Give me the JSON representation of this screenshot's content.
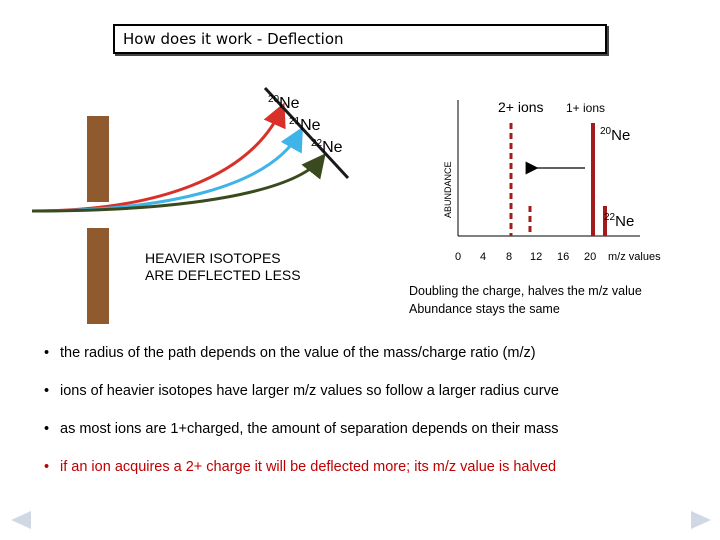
{
  "slide": {
    "title": "How does it work - Deflection"
  },
  "deflection_diagram": {
    "isotopes": [
      {
        "mass": "20",
        "element": "Ne",
        "color": "#d8312a"
      },
      {
        "mass": "21",
        "element": "Ne",
        "color": "#3fb4e8"
      },
      {
        "mass": "22",
        "element": "Ne",
        "color": "#3a4a1e"
      }
    ],
    "caption_line1": "HEAVIER ISOTOPES",
    "caption_line2": "ARE DEFLECTED LESS",
    "magnet_color": "#8e5a2e"
  },
  "spectrum": {
    "ylabel": "ABUNDANCE",
    "label_2plus": "2+ ions",
    "label_1plus": "1+ ions",
    "peak_20_mass": "20",
    "peak_20_element": "Ne",
    "peak_22_mass": "22",
    "peak_22_element": "Ne",
    "ticks": [
      "0",
      "4",
      "8",
      "12",
      "16",
      "20"
    ],
    "xlabel": "m/z values",
    "peak_color": "#a31c1c"
  },
  "chart_data": {
    "type": "bar",
    "ylabel": "ABUNDANCE",
    "xlabel": "m/z values",
    "xlim": [
      0,
      24
    ],
    "series": [
      {
        "name": "1+ ions",
        "style": "solid",
        "points": [
          {
            "x": 20,
            "y": 100
          },
          {
            "x": 22,
            "y": 10
          }
        ]
      },
      {
        "name": "2+ ions",
        "style": "dashed",
        "points": [
          {
            "x": 10,
            "y": 100
          },
          {
            "x": 11,
            "y": 10
          }
        ]
      }
    ]
  },
  "summary": {
    "line1": "Doubling the charge, halves the m/z value",
    "line2": "Abundance stays the same"
  },
  "notes": [
    "the radius of the path depends on the value of the mass/charge ratio (m/z)",
    "ions of heavier isotopes have larger m/z values so follow a larger radius curve",
    "as most ions are 1+charged, the amount of separation depends on their mass",
    "if an ion acquires a 2+ charge it will be deflected more; its m/z value is halved"
  ]
}
